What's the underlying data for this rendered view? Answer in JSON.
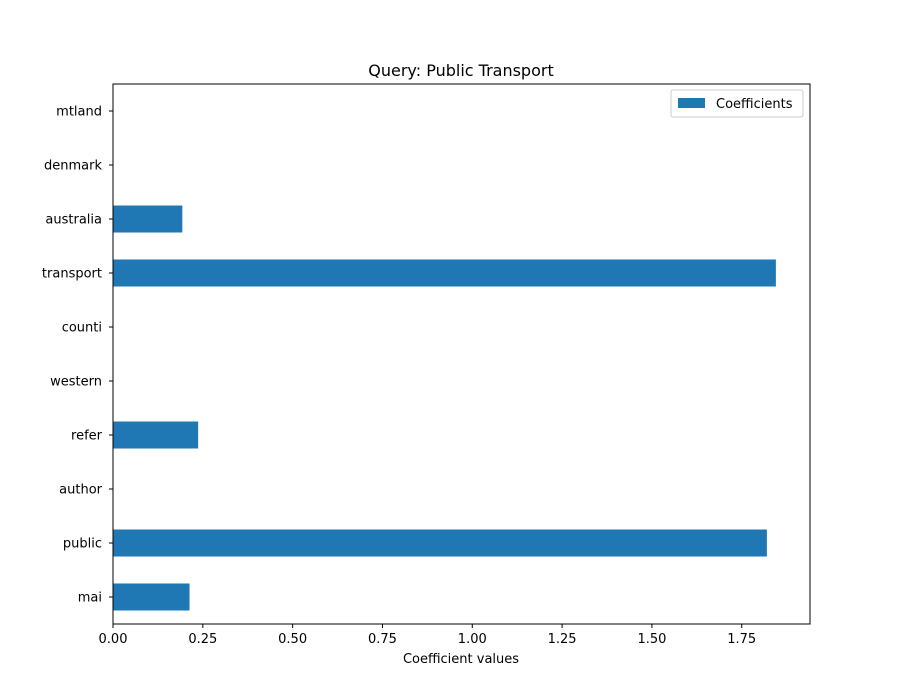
{
  "chart_data": {
    "type": "bar",
    "orientation": "horizontal",
    "title": "Query: Public Transport",
    "xlabel": "Coefficient values",
    "ylabel": "",
    "categories": [
      "mai",
      "public",
      "author",
      "refer",
      "western",
      "counti",
      "transport",
      "australia",
      "denmark",
      "mtland"
    ],
    "series": [
      {
        "name": "Coefficients",
        "color": "#1f77b4",
        "values": [
          0.213,
          1.82,
          0.0,
          0.237,
          0.0,
          0.0,
          1.845,
          0.193,
          0.0,
          0.0
        ]
      }
    ],
    "xlim": [
      0,
      1.94
    ],
    "xticks": [
      0.0,
      0.25,
      0.5,
      0.75,
      1.0,
      1.25,
      1.5,
      1.75
    ],
    "xtick_labels": [
      "0.00",
      "0.25",
      "0.50",
      "0.75",
      "1.00",
      "1.25",
      "1.50",
      "1.75"
    ],
    "grid": false,
    "legend_position": "top-right"
  }
}
